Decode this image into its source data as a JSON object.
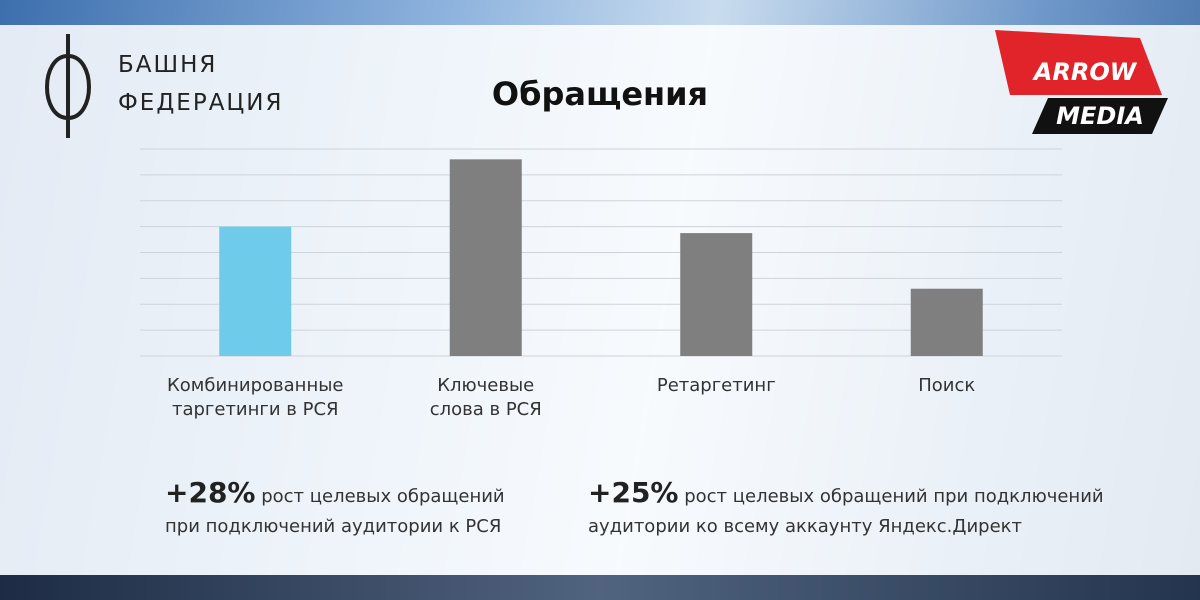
{
  "logo": {
    "line1": "БАШНЯ",
    "line2": "ФЕДЕРАЦИЯ"
  },
  "brand": {
    "line1": "ARROW",
    "line2": "MEDIA"
  },
  "chart_data": {
    "type": "bar",
    "title": "Обращения",
    "categories": [
      "Комбинированные\nтаргетинги в РСЯ",
      "Ключевые\nслова в РСЯ",
      "Ретаргетинг",
      "Поиск"
    ],
    "values": [
      5,
      7.6,
      4.75,
      2.6
    ],
    "colors": [
      "#6ecbea",
      "#7f7f7f",
      "#7f7f7f",
      "#7f7f7f"
    ],
    "ylim": [
      0,
      8
    ],
    "yticks": [
      0,
      1,
      2,
      3,
      4,
      5,
      6,
      7,
      8
    ],
    "grid": true
  },
  "notes": [
    {
      "highlight": "+28%",
      "text": "рост целевых обращений\nпри подключений аудитории к РСЯ"
    },
    {
      "highlight": "+25%",
      "text": "рост целевых обращений при подключений\nаудитории ко всему аккаунту Яндекс.Директ"
    }
  ]
}
